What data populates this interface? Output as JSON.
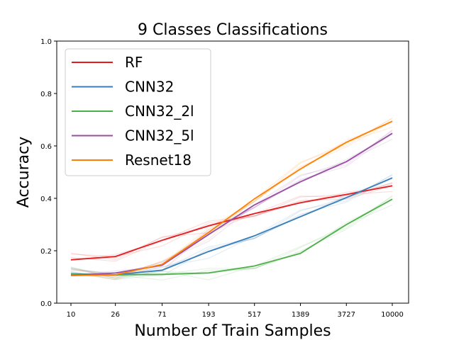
{
  "chart_data": {
    "type": "line",
    "title": "9 Classes Classifications",
    "xlabel": "Number of Train Samples",
    "ylabel": "Accuracy",
    "x_scale": "log",
    "x": [
      10,
      26,
      71,
      193,
      517,
      1389,
      3727,
      10000
    ],
    "x_tick_labels": [
      "10",
      "26",
      "71",
      "193",
      "517",
      "1389",
      "3727",
      "10000"
    ],
    "ylim": [
      0.0,
      1.0
    ],
    "y_ticks": [
      0.0,
      0.2,
      0.4,
      0.6,
      0.8,
      1.0
    ],
    "y_tick_labels": [
      "0.0",
      "0.2",
      "0.4",
      "0.6",
      "0.8",
      "1.0"
    ],
    "legend_position": "top-left",
    "grid": false,
    "series": [
      {
        "name": "RF",
        "color": "#e41a1c",
        "values": [
          0.165,
          0.178,
          0.24,
          0.295,
          0.342,
          0.383,
          0.415,
          0.448
        ]
      },
      {
        "name": "CNN32",
        "color": "#377eb8",
        "values": [
          0.112,
          0.108,
          0.126,
          0.197,
          0.257,
          0.33,
          0.403,
          0.478
        ]
      },
      {
        "name": "CNN32_2l",
        "color": "#4daf4a",
        "values": [
          0.11,
          0.108,
          0.11,
          0.115,
          0.142,
          0.19,
          0.3,
          0.397
        ]
      },
      {
        "name": "CNN32_5l",
        "color": "#984ea3",
        "values": [
          0.105,
          0.115,
          0.145,
          0.262,
          0.375,
          0.463,
          0.54,
          0.648
        ]
      },
      {
        "name": "Resnet18",
        "color": "#ff7f00",
        "values": [
          0.105,
          0.108,
          0.148,
          0.27,
          0.398,
          0.512,
          0.614,
          0.694
        ]
      }
    ]
  }
}
